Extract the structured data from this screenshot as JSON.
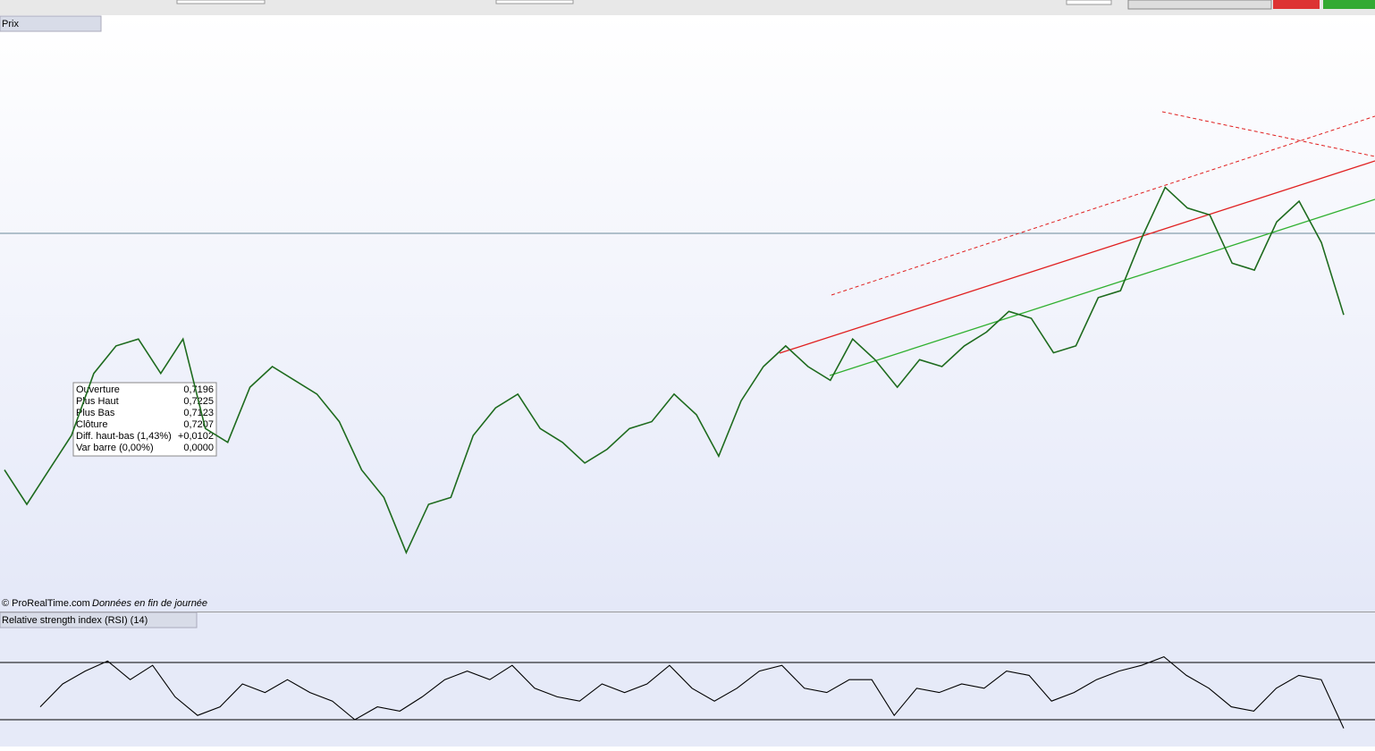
{
  "price_panel": {
    "title": "Prix",
    "ylim": [
      0.657,
      0.91
    ],
    "close": [
      0.7171,
      0.7021,
      0.7171,
      0.7321,
      0.7591,
      0.7711,
      0.7741,
      0.7591,
      0.7741,
      0.7351,
      0.7291,
      0.7531,
      0.7621,
      0.7561,
      0.7501,
      0.7381,
      0.7171,
      0.7051,
      0.6811,
      0.7021,
      0.7051,
      0.7321,
      0.7441,
      0.7501,
      0.7351,
      0.7291,
      0.7201,
      0.7261,
      0.7351,
      0.7381,
      0.7501,
      0.7411,
      0.7231,
      0.7471,
      0.7621,
      0.7711,
      0.7621,
      0.7561,
      0.7741,
      0.7651,
      0.7531,
      0.7651,
      0.7621,
      0.7711,
      0.7771,
      0.7861,
      0.7831,
      0.7681,
      0.7711,
      0.7921,
      0.7951,
      0.8191,
      0.8401,
      0.8311,
      0.8281,
      0.8071,
      0.8041,
      0.8251,
      0.8341,
      0.8161,
      0.7846
    ],
    "info_box": {
      "rows": [
        [
          "Ouverture",
          "0,7196"
        ],
        [
          "Plus Haut",
          "0,7225"
        ],
        [
          "Plus Bas",
          "0,7123"
        ],
        [
          "Clôture",
          "0,7207"
        ],
        [
          "Diff. haut-bas (1,43%)",
          "+0,0102"
        ],
        [
          "Var barre (0,00%)",
          "0,0000"
        ]
      ]
    },
    "copyright": "© ProRealTime.com",
    "data_note": "Données en fin de journée"
  },
  "rsi_panel": {
    "title": "Relative strength index (RSI) (14)",
    "ylim": [
      11.25,
      105
    ],
    "levels": [
      70,
      30
    ],
    "values": [
      39,
      55,
      64,
      71,
      58,
      68,
      46,
      33,
      39,
      55,
      49,
      58,
      49,
      43,
      30,
      39,
      36,
      46,
      58,
      64,
      58,
      68,
      52,
      46,
      43,
      55,
      49,
      55,
      68,
      52,
      43,
      52,
      64,
      68,
      52,
      49,
      58,
      58,
      33,
      52,
      49,
      55,
      52,
      64,
      61,
      43,
      49,
      58,
      64,
      68,
      74,
      61,
      52,
      39,
      36,
      52,
      61,
      58,
      24
    ]
  }
}
